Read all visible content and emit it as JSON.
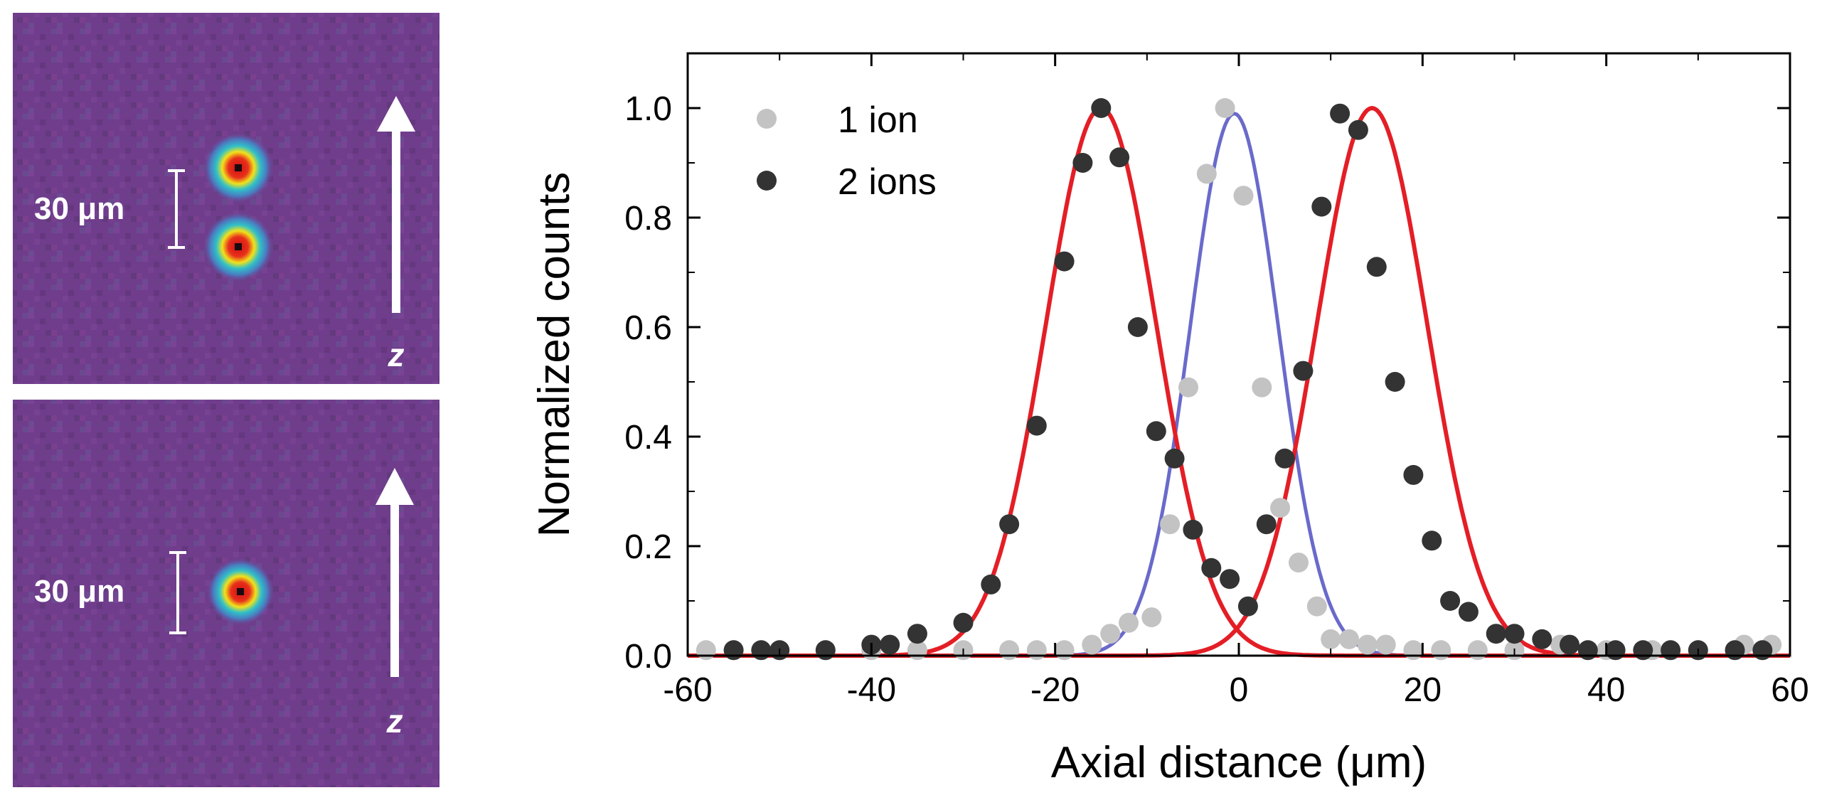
{
  "panels": [
    {
      "scale_label": "30 μm",
      "axis_label": "z",
      "ions": 2
    },
    {
      "scale_label": "30 μm",
      "axis_label": "z",
      "ions": 1
    }
  ],
  "colors": {
    "background_image": "#6f3d8c",
    "one_ion_points": "#c3c3c3",
    "two_ion_points": "#333333",
    "one_ion_fit": "#6a6acb",
    "two_ion_fit": "#e41e26",
    "ion_core": "#d01010"
  },
  "chart_data": {
    "type": "scatter",
    "xlabel": "Axial distance (μm)",
    "ylabel": "Normalized counts",
    "xlim": [
      -60,
      60
    ],
    "ylim": [
      0,
      1.1
    ],
    "xticks": [
      -60,
      -40,
      -20,
      0,
      20,
      40,
      60
    ],
    "yticks": [
      0.0,
      0.2,
      0.4,
      0.6,
      0.8,
      1.0
    ],
    "xtick_labels": [
      "-60",
      "-40",
      "-20",
      "0",
      "20",
      "40",
      "60"
    ],
    "ytick_labels": [
      "0.0",
      "0.2",
      "0.4",
      "0.6",
      "0.8",
      "1.0"
    ],
    "legend_position": "top-left",
    "series": [
      {
        "name": "1 ion",
        "x": [
          -58,
          -55,
          -50,
          -45,
          -40,
          -35,
          -30,
          -25,
          -22,
          -19,
          -16,
          -14,
          -12,
          -9.5,
          -7.5,
          -5.5,
          -3.5,
          -1.5,
          0.5,
          2.5,
          4.5,
          6.5,
          8.5,
          10,
          12,
          14,
          16,
          19,
          22,
          26,
          30,
          35,
          40,
          45,
          50,
          55,
          58
        ],
        "y": [
          0.01,
          0.01,
          0.01,
          0.01,
          0.01,
          0.01,
          0.01,
          0.01,
          0.01,
          0.01,
          0.02,
          0.04,
          0.06,
          0.07,
          0.24,
          0.49,
          0.88,
          1.0,
          0.84,
          0.49,
          0.27,
          0.17,
          0.09,
          0.03,
          0.03,
          0.02,
          0.02,
          0.01,
          0.01,
          0.01,
          0.01,
          0.02,
          0.01,
          0.01,
          0.01,
          0.02,
          0.02
        ]
      },
      {
        "name": "2 ions",
        "x": [
          -55,
          -52,
          -50,
          -45,
          -40,
          -38,
          -35,
          -30,
          -27,
          -25,
          -22,
          -19,
          -17,
          -15,
          -13,
          -11,
          -9,
          -7,
          -5,
          -3,
          -1,
          1,
          3,
          5,
          7,
          9,
          11,
          13,
          15,
          17,
          19,
          21,
          23,
          25,
          28,
          30,
          33,
          36,
          38,
          41,
          44,
          47,
          50,
          54,
          57
        ],
        "y": [
          0.01,
          0.01,
          0.01,
          0.01,
          0.02,
          0.02,
          0.04,
          0.06,
          0.13,
          0.24,
          0.42,
          0.72,
          0.9,
          1.0,
          0.91,
          0.6,
          0.41,
          0.36,
          0.23,
          0.16,
          0.14,
          0.09,
          0.24,
          0.36,
          0.52,
          0.82,
          0.99,
          0.96,
          0.71,
          0.5,
          0.33,
          0.21,
          0.1,
          0.08,
          0.04,
          0.04,
          0.03,
          0.02,
          0.01,
          0.01,
          0.01,
          0.01,
          0.01,
          0.01,
          0.01
        ]
      }
    ],
    "fits": [
      {
        "series": "1 ion",
        "shape": "gaussian",
        "center": -0.5,
        "sigma": 4.8,
        "amplitude": 0.99
      },
      {
        "series": "2 ions",
        "shape": "gaussian",
        "center": -15,
        "sigma": 6.0,
        "amplitude": 1.0
      },
      {
        "series": "2 ions",
        "shape": "gaussian",
        "center": 14.5,
        "sigma": 6.0,
        "amplitude": 1.0
      }
    ]
  }
}
